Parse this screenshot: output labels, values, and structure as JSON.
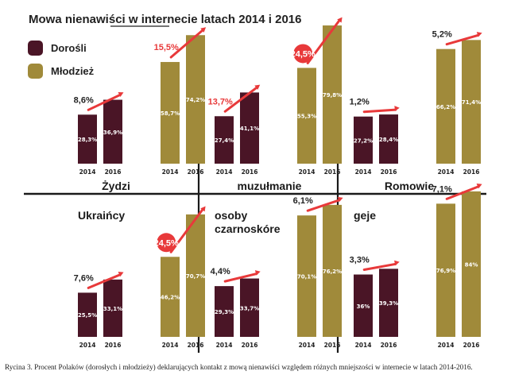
{
  "title": "Mowa nienawiści w internecie latach 2014 i 2016",
  "caption": "Rycina 3. Procent Polaków (dorosłych i młodzieży) deklarujących kontakt z mową nienawiści względem różnych mniejszości w internecie w latach 2014-2016.",
  "colors": {
    "adults": "#4a1526",
    "youth": "#a08a3a",
    "arrow": "#e8393a",
    "text_dark": "#222222"
  },
  "legend": [
    {
      "label": "Dorośli",
      "color_key": "adults"
    },
    {
      "label": "Młodzież",
      "color_key": "youth"
    }
  ],
  "chart_data": {
    "type": "bar",
    "x_ticks": [
      "2014",
      "2016"
    ],
    "ylim": [
      0,
      100
    ],
    "panels": [
      {
        "label": "Żydzi",
        "adults": {
          "values": [
            28.3,
            36.9
          ],
          "labels": [
            "28,3%",
            "36,9%"
          ],
          "change": "8,6%",
          "change_circled": false
        },
        "youth": {
          "values": [
            58.7,
            74.2
          ],
          "labels": [
            "58,7%",
            "74,2%"
          ],
          "change": "15,5%",
          "change_circled": false
        }
      },
      {
        "label": "muzułmanie",
        "adults": {
          "values": [
            27.4,
            41.1
          ],
          "labels": [
            "27,4%",
            "41,1%"
          ],
          "change": "13,7%",
          "change_circled": false
        },
        "youth": {
          "values": [
            55.3,
            79.8
          ],
          "labels": [
            "55,3%",
            "79,8%"
          ],
          "change": "24,5%",
          "change_circled": true
        }
      },
      {
        "label": "Romowie",
        "adults": {
          "values": [
            27.2,
            28.4
          ],
          "labels": [
            "27,2%",
            "28,4%"
          ],
          "change": "1,2%",
          "change_circled": false
        },
        "youth": {
          "values": [
            66.2,
            71.4
          ],
          "labels": [
            "66,2%",
            "71,4%"
          ],
          "change": "5,2%",
          "change_circled": false
        }
      },
      {
        "label": "Ukraińcy",
        "adults": {
          "values": [
            25.5,
            33.1
          ],
          "labels": [
            "25,5%",
            "33,1%"
          ],
          "change": "7,6%",
          "change_circled": false
        },
        "youth": {
          "values": [
            46.2,
            70.7
          ],
          "labels": [
            "46,2%",
            "70,7%"
          ],
          "change": "24,5%",
          "change_circled": true
        }
      },
      {
        "label": "osoby czarnoskóre",
        "adults": {
          "values": [
            29.3,
            33.7
          ],
          "labels": [
            "29,3%",
            "33,7%"
          ],
          "change": "4,4%",
          "change_circled": false
        },
        "youth": {
          "values": [
            70.1,
            76.2
          ],
          "labels": [
            "70,1%",
            "76,2%"
          ],
          "change": "6,1%",
          "change_circled": false
        }
      },
      {
        "label": "geje",
        "adults": {
          "values": [
            36.0,
            39.3
          ],
          "labels": [
            "36%",
            "39,3%"
          ],
          "change": "3,3%",
          "change_circled": false
        },
        "youth": {
          "values": [
            76.9,
            84.0
          ],
          "labels": [
            "76,9%",
            "84%"
          ],
          "change": "7,1%",
          "change_circled": false
        }
      }
    ]
  }
}
